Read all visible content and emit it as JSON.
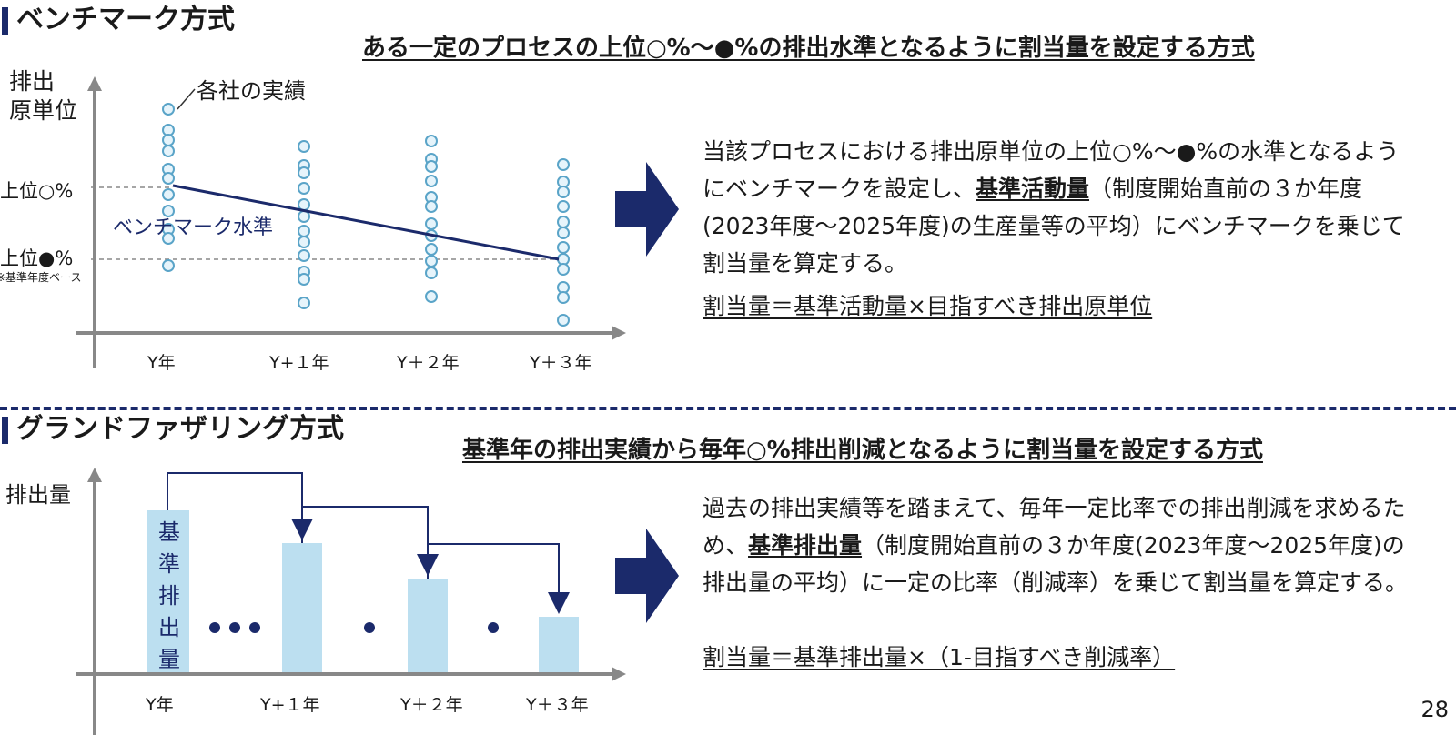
{
  "benchmark": {
    "title": "ベンチマーク方式",
    "subtitle": "ある一定のプロセスの上位○%～●%の排出水準となるように割当量を設定する方式",
    "ylabel_line1": "排出",
    "ylabel_line2": "原単位",
    "upper_label": "上位○%",
    "lower_label": "上位●%",
    "lower_note": "※基準年度ベース",
    "callout": "各社の実績",
    "line_label": "ベンチマーク水準",
    "x_labels": [
      "Y年",
      "Y+１年",
      "Y＋２年",
      "Y＋３年"
    ],
    "desc_pre1": "当該プロセスにおける排出原単位の上位○%～●%の水準となるようにベンチマークを設定し、",
    "desc_bold": "基準活動量",
    "desc_post1": "（制度開始直前の３か年度(2023年度～2025年度)の生産量等の平均）にベンチマークを乗じて割当量を算定する。",
    "formula": "割当量＝基準活動量×目指すべき排出原単位"
  },
  "grandfathering": {
    "title": "グランドファザリング方式",
    "subtitle": "基準年の排出実績から毎年○%排出削減となるように割当量を設定する方式",
    "ylabel": "排出量",
    "base_bar_label": "基準排出量",
    "x_labels": [
      "Y年",
      "Y+１年",
      "Y＋２年",
      "Y＋３年"
    ],
    "desc_pre1": "過去の排出実績等を踏まえて、毎年一定比率での排出削減を求めるため、",
    "desc_bold": "基準排出量",
    "desc_post1": "（制度開始直前の３か年度(2023年度～2025年度)の排出量の平均）に一定の比率（削減率）を乗じて割当量を算定する。",
    "formula": "割当量＝基準排出量×（1-目指すべき削減率）"
  },
  "page_number": "28",
  "colors": {
    "navy": "#1b2a6b",
    "bar_fill": "#bcdff0",
    "dot_stroke": "#5aa4c8",
    "dot_fill": "#e6f4fb"
  }
}
